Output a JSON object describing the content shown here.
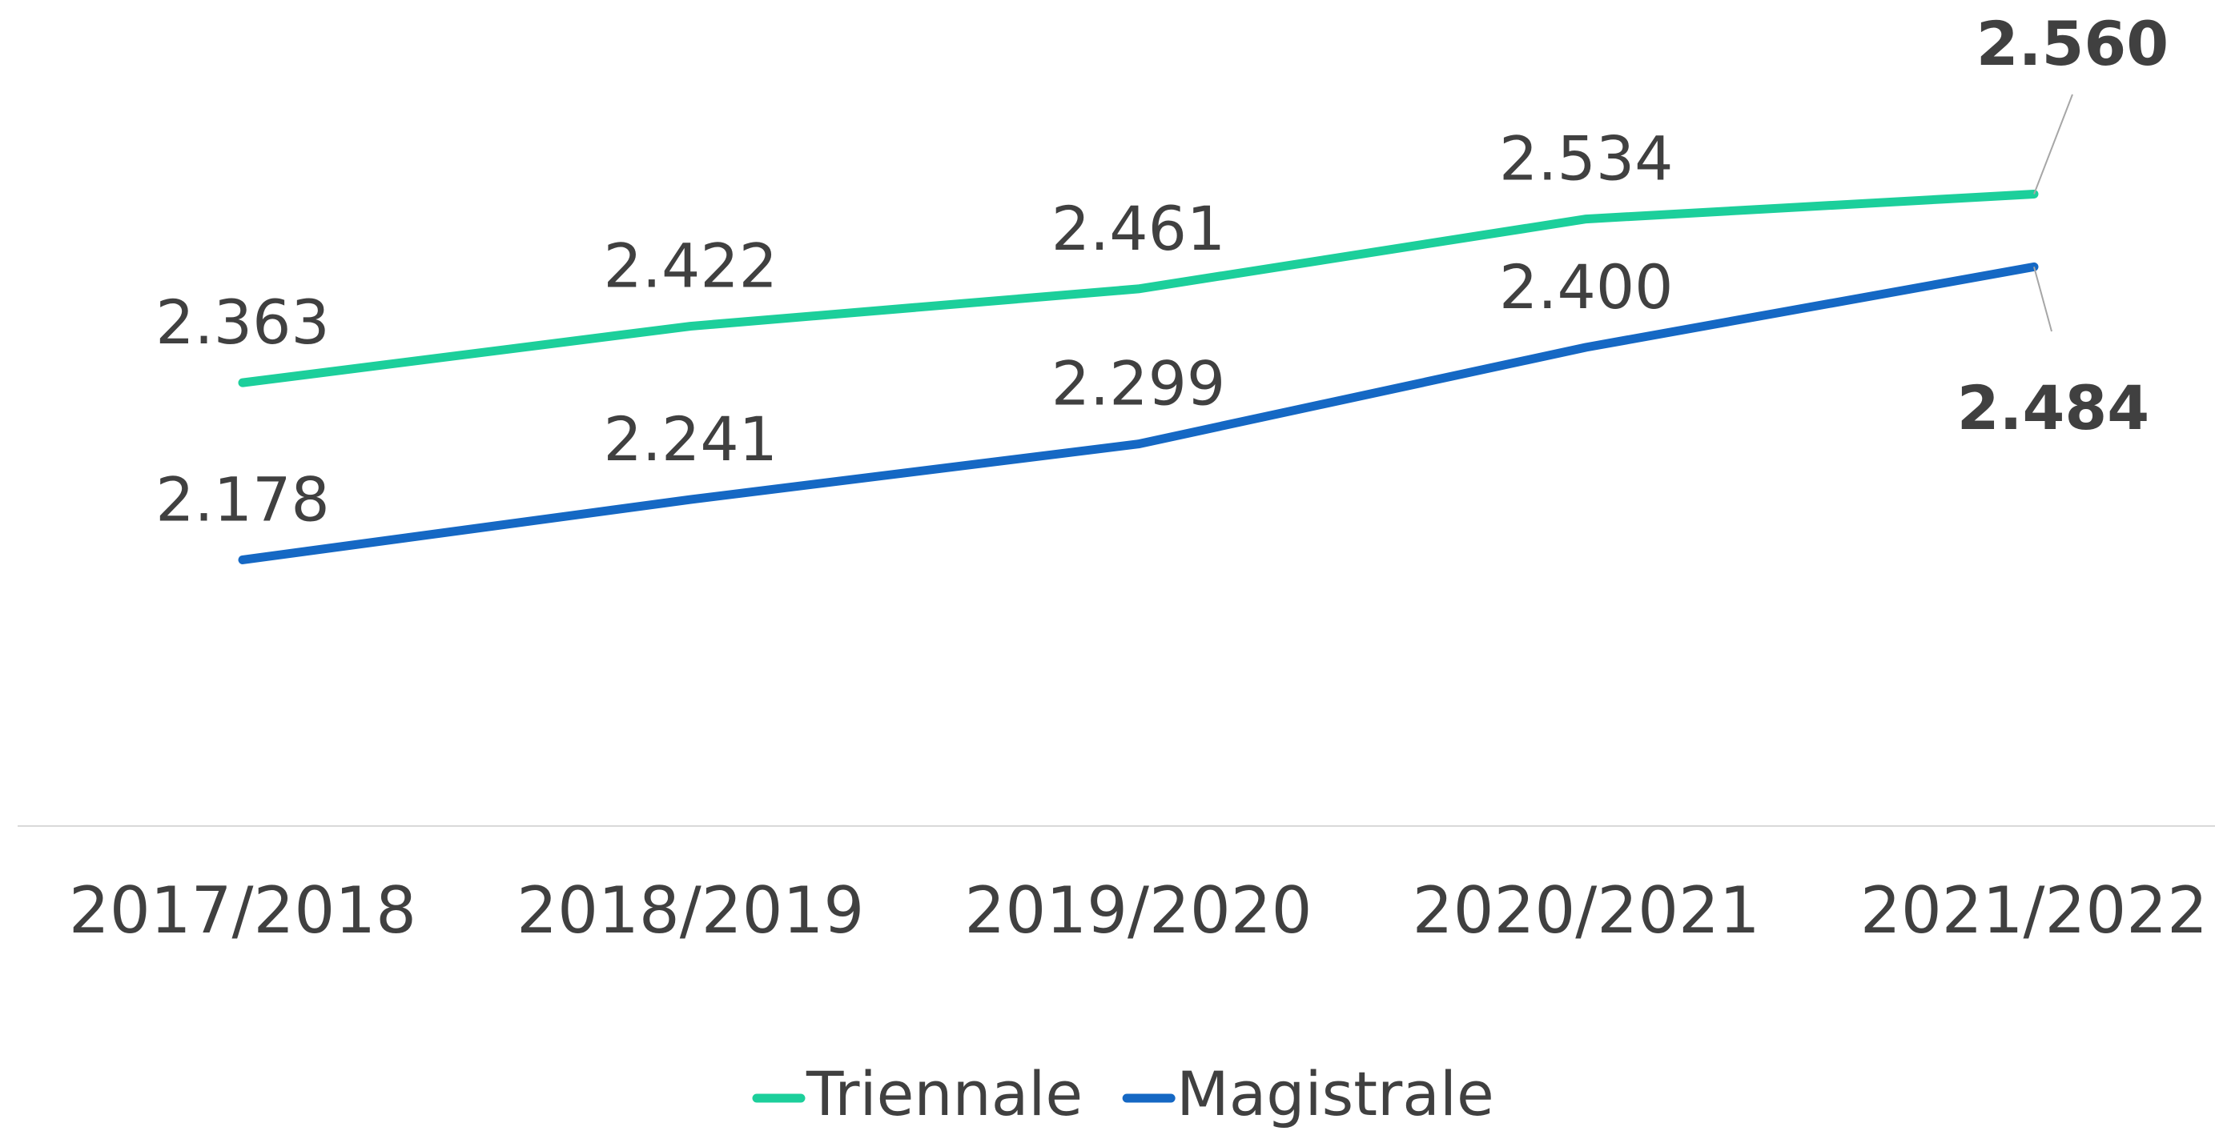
{
  "chart_data": {
    "type": "line",
    "categories": [
      "2017/2018",
      "2018/2019",
      "2019/2020",
      "2020/2021",
      "2021/2022"
    ],
    "series": [
      {
        "name": "Triennale",
        "color": "#1ccf9b",
        "values": [
          2363,
          2422,
          2461,
          2534,
          2560
        ],
        "value_labels": [
          "2.363",
          "2.422",
          "2.461",
          "2.534",
          "2.560"
        ]
      },
      {
        "name": "Magistrale",
        "color": "#1568c4",
        "values": [
          2178,
          2241,
          2299,
          2400,
          2484
        ],
        "value_labels": [
          "2.178",
          "2.241",
          "2.299",
          "2.400",
          "2.484"
        ]
      }
    ],
    "ylim": [
      1900,
      2700
    ]
  }
}
